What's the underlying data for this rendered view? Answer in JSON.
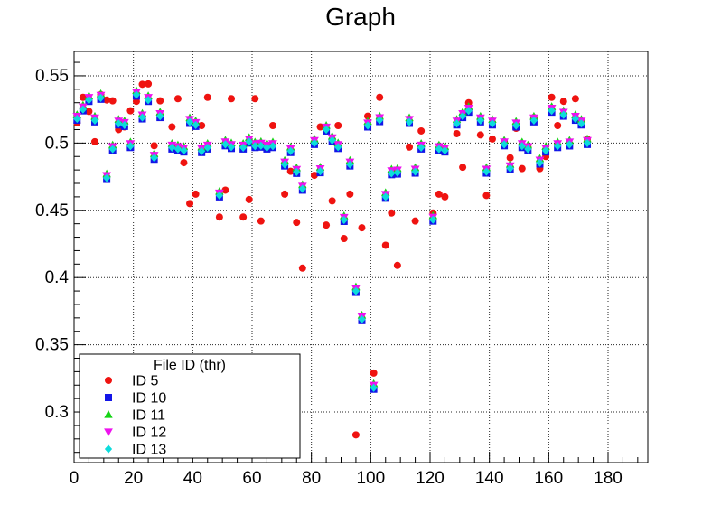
{
  "chart_data": {
    "type": "scatter",
    "title": "Graph",
    "xlabel": "",
    "ylabel": "",
    "x_axis": {
      "min": 0,
      "max": 193.4,
      "majors": [
        0,
        20,
        40,
        60,
        80,
        100,
        120,
        140,
        160,
        180
      ],
      "labels": [
        "0",
        "20",
        "40",
        "60",
        "80",
        "100",
        "120",
        "140",
        "160",
        "180"
      ],
      "minor_step": 5,
      "grid": true
    },
    "y_axis": {
      "min": 0.2624,
      "max": 0.5681,
      "majors": [
        0.3,
        0.35,
        0.4,
        0.45,
        0.5,
        0.55
      ],
      "labels": [
        "0.3",
        "0.35",
        "0.4",
        "0.45",
        "0.5",
        "0.55"
      ],
      "minor_step": 0.01,
      "grid": true
    },
    "x": [
      1,
      3,
      5,
      7,
      9,
      11,
      13,
      15,
      17,
      19,
      21,
      23,
      25,
      27,
      29,
      33,
      35,
      37,
      39,
      41,
      43,
      45,
      49,
      51,
      53,
      57,
      59,
      61,
      63,
      65,
      67,
      71,
      73,
      75,
      77,
      81,
      83,
      85,
      87,
      89,
      91,
      93,
      95,
      97,
      99,
      101,
      103,
      105,
      107,
      109,
      113,
      115,
      117,
      121,
      123,
      125,
      129,
      131,
      133,
      137,
      139,
      141,
      145,
      147,
      149,
      151,
      153,
      155,
      157,
      159,
      161,
      163,
      165,
      167,
      169,
      171,
      173
    ],
    "series": [
      {
        "name": "ID 5",
        "marker": "circle",
        "color": "#ef1310",
        "values": [
          0.515,
          0.534,
          0.5235,
          0.501,
          0.536,
          0.532,
          0.5314,
          0.51,
          0.512,
          0.524,
          0.531,
          0.5437,
          0.544,
          0.498,
          0.5314,
          0.512,
          0.533,
          0.4854,
          0.455,
          0.462,
          0.513,
          0.534,
          0.445,
          0.465,
          0.533,
          0.445,
          0.458,
          0.533,
          0.442,
          0.497,
          0.513,
          0.462,
          0.479,
          0.441,
          0.407,
          0.476,
          0.512,
          0.439,
          0.457,
          0.513,
          0.429,
          0.462,
          0.283,
          0.437,
          0.52,
          0.329,
          0.534,
          0.424,
          0.448,
          0.409,
          0.497,
          0.442,
          0.509,
          0.448,
          0.462,
          0.46,
          0.507,
          0.482,
          0.53,
          0.506,
          0.461,
          0.503,
          0.501,
          0.489,
          0.511,
          0.481,
          0.497,
          0.519,
          0.481,
          0.49,
          0.534,
          0.513,
          0.531,
          0.499,
          0.533,
          0.516,
          0.503
        ]
      },
      {
        "name": "ID 10",
        "marker": "square",
        "color": "#1315e8",
        "values": [
          0.517,
          0.524,
          0.531,
          0.5158,
          0.5326,
          0.473,
          0.4945,
          0.5135,
          0.5124,
          0.4967,
          0.5349,
          0.518,
          0.531,
          0.488,
          0.519,
          0.4956,
          0.4945,
          0.4934,
          0.5147,
          0.5124,
          0.493,
          0.4956,
          0.46,
          0.498,
          0.496,
          0.4956,
          0.5,
          0.4967,
          0.497,
          0.4956,
          0.4967,
          0.483,
          0.493,
          0.4775,
          0.465,
          0.499,
          0.478,
          0.509,
          0.501,
          0.496,
          0.4418,
          0.483,
          0.389,
          0.368,
          0.512,
          0.317,
          0.516,
          0.459,
          0.4765,
          0.477,
          0.5147,
          0.4777,
          0.4956,
          0.442,
          0.4945,
          0.4934,
          0.5135,
          0.519,
          0.523,
          0.5158,
          0.4777,
          0.5135,
          0.498,
          0.4802,
          0.512,
          0.4967,
          0.4945,
          0.5158,
          0.4844,
          0.4934,
          0.523,
          0.4967,
          0.52,
          0.4979,
          0.517,
          0.5135,
          0.499
        ]
      },
      {
        "name": "ID 11",
        "marker": "triangle-up",
        "color": "#15d415",
        "values": [
          0.521,
          0.528,
          0.535,
          0.5198,
          0.5366,
          0.477,
          0.4985,
          0.5175,
          0.5164,
          0.5007,
          0.5389,
          0.522,
          0.535,
          0.492,
          0.523,
          0.4996,
          0.4985,
          0.4974,
          0.5187,
          0.5164,
          0.497,
          0.4996,
          0.464,
          0.502,
          0.5,
          0.4996,
          0.504,
          0.5007,
          0.501,
          0.4996,
          0.5007,
          0.487,
          0.497,
          0.4815,
          0.469,
          0.503,
          0.482,
          0.513,
          0.505,
          0.5,
          0.4458,
          0.487,
          0.393,
          0.372,
          0.516,
          0.321,
          0.52,
          0.463,
          0.4805,
          0.481,
          0.5187,
          0.4817,
          0.4996,
          0.446,
          0.4985,
          0.4974,
          0.5175,
          0.523,
          0.527,
          0.5198,
          0.4817,
          0.5175,
          0.502,
          0.4842,
          0.516,
          0.5007,
          0.4985,
          0.5198,
          0.4884,
          0.4974,
          0.527,
          0.5007,
          0.524,
          0.5019,
          0.521,
          0.5175,
          0.503
        ]
      },
      {
        "name": "ID 12",
        "marker": "triangle-down",
        "color": "#ee12ee",
        "values": [
          0.52,
          0.527,
          0.534,
          0.5188,
          0.5356,
          0.476,
          0.4975,
          0.5165,
          0.5154,
          0.4997,
          0.5379,
          0.521,
          0.534,
          0.491,
          0.522,
          0.4986,
          0.4975,
          0.4964,
          0.5177,
          0.5154,
          0.496,
          0.4986,
          0.463,
          0.501,
          0.499,
          0.4986,
          0.503,
          0.4997,
          0.5,
          0.4986,
          0.4997,
          0.486,
          0.496,
          0.4805,
          0.468,
          0.502,
          0.481,
          0.512,
          0.504,
          0.499,
          0.4448,
          0.486,
          0.392,
          0.371,
          0.515,
          0.32,
          0.519,
          0.462,
          0.4795,
          0.48,
          0.5177,
          0.4807,
          0.4986,
          0.445,
          0.4975,
          0.4964,
          0.5165,
          0.522,
          0.526,
          0.5188,
          0.4807,
          0.5165,
          0.501,
          0.4832,
          0.515,
          0.4997,
          0.4975,
          0.5188,
          0.4874,
          0.4964,
          0.526,
          0.4997,
          0.523,
          0.5009,
          0.52,
          0.5165,
          0.502
        ]
      },
      {
        "name": "ID 13",
        "marker": "diamond",
        "color": "#0cdcdc",
        "values": [
          0.518,
          0.525,
          0.532,
          0.5168,
          0.5336,
          0.474,
          0.4955,
          0.5145,
          0.5134,
          0.4977,
          0.5359,
          0.519,
          0.532,
          0.489,
          0.52,
          0.4966,
          0.4955,
          0.4944,
          0.5157,
          0.5134,
          0.494,
          0.4966,
          0.461,
          0.499,
          0.497,
          0.4966,
          0.501,
          0.4977,
          0.498,
          0.4966,
          0.4977,
          0.484,
          0.494,
          0.4785,
          0.466,
          0.5,
          0.479,
          0.51,
          0.502,
          0.497,
          0.4428,
          0.484,
          0.39,
          0.369,
          0.513,
          0.318,
          0.517,
          0.46,
          0.4775,
          0.478,
          0.5157,
          0.4787,
          0.4966,
          0.443,
          0.4955,
          0.4944,
          0.5145,
          0.52,
          0.524,
          0.5168,
          0.4787,
          0.5145,
          0.499,
          0.4812,
          0.513,
          0.4977,
          0.4955,
          0.5168,
          0.4854,
          0.4944,
          0.524,
          0.4977,
          0.521,
          0.4989,
          0.518,
          0.5145,
          0.5
        ]
      }
    ],
    "legend": {
      "title": "File ID (thr)",
      "position": "bottom-left",
      "entries": [
        {
          "label": "ID 5",
          "marker": "circle",
          "color": "#ef1310"
        },
        {
          "label": "ID 10",
          "marker": "square",
          "color": "#1315e8"
        },
        {
          "label": "ID 11",
          "marker": "triangle-up",
          "color": "#15d415"
        },
        {
          "label": "ID 12",
          "marker": "triangle-down",
          "color": "#ee12ee"
        },
        {
          "label": "ID 13",
          "marker": "diamond",
          "color": "#0cdcdc"
        }
      ]
    },
    "colors": {
      "frame": "#000000",
      "grid": "#000000",
      "background": "#ffffff"
    }
  }
}
